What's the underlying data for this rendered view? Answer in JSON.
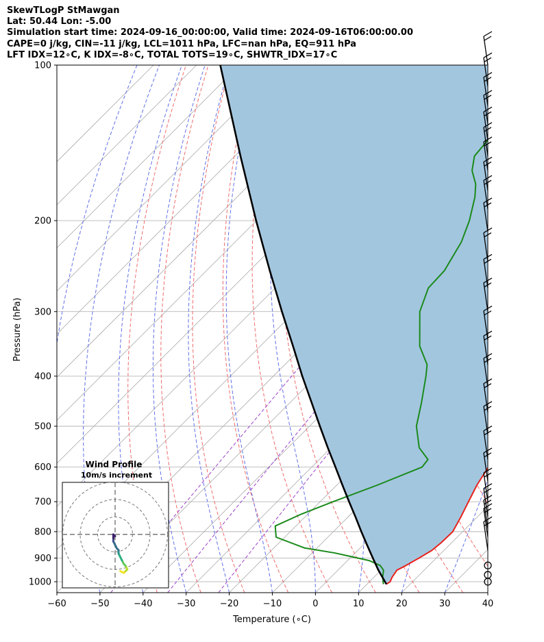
{
  "header": {
    "line1": "SkewTLogP StMawgan",
    "line2": "Lat: 50.44   Lon: -5.00",
    "line3": "Simulation start time: 2024-09-16_00:00:00, Valid time: 2024-09-16T06:00:00.00",
    "line4": "CAPE=0 j/kg, CIN=-11 j/kg, LCL=1011 hPa, LFC=nan hPa, EQ=911 hPa",
    "line5": "LFT IDX=12∘C, K IDX=-8∘C, TOTAL TOTS=19∘C, SHWTR_IDX=17∘C"
  },
  "chart_data": [
    {
      "type": "line",
      "subtype": "skew-t log-p",
      "xlabel": "Temperature (∘C)",
      "ylabel": "Pressure (hPa)",
      "xlim": [
        -60,
        40
      ],
      "ylim": [
        1050,
        100
      ],
      "y_scale": "log",
      "x_ticks": [
        -60,
        -50,
        -40,
        -30,
        -20,
        -10,
        0,
        10,
        20,
        30,
        40
      ],
      "y_ticks": [
        100,
        200,
        300,
        400,
        500,
        600,
        700,
        800,
        900,
        1000
      ],
      "grid": true,
      "colors": {
        "temperature": "#e8221b",
        "dewpoint": "#1a8a1a",
        "parcel": "#000000",
        "cape_fill": "#a3c6df",
        "dry_adiabats": "#f06a6a",
        "moist_adiabats": "#5f6fe8",
        "mixing_ratio": "#9a40c8",
        "isotherms": "#aaaaaa"
      },
      "series": [
        {
          "key": "temperature",
          "points": [
            [
              1011,
              14.5
            ],
            [
              1000,
              14.8
            ],
            [
              980,
              14.2
            ],
            [
              950,
              13.7
            ],
            [
              930,
              14.7
            ],
            [
              900,
              16.0
            ],
            [
              870,
              17.2
            ],
            [
              840,
              17.6
            ],
            [
              800,
              17.7
            ],
            [
              750,
              16.2
            ],
            [
              700,
              14.4
            ],
            [
              650,
              12.5
            ],
            [
              600,
              11.0
            ],
            [
              550,
              9.1
            ],
            [
              500,
              5.9
            ],
            [
              450,
              2.2
            ],
            [
              400,
              -2.2
            ],
            [
              350,
              -7.5
            ],
            [
              300,
              -13.8
            ],
            [
              270,
              -18.0
            ],
            [
              250,
              -21.7
            ],
            [
              230,
              -25.2
            ],
            [
              210,
              -29.2
            ],
            [
              200,
              -31.0
            ],
            [
              180,
              -36.2
            ],
            [
              170,
              -39.5
            ],
            [
              160,
              -43.4
            ],
            [
              150,
              -46.6
            ],
            [
              140,
              -50.6
            ],
            [
              130,
              -54.4
            ],
            [
              120,
              -58.8
            ],
            [
              110,
              -63.7
            ],
            [
              100,
              -68.2
            ]
          ]
        },
        {
          "key": "dewpoint",
          "points": [
            [
              1011,
              13.8
            ],
            [
              980,
              12.0
            ],
            [
              950,
              10.6
            ],
            [
              930,
              8.7
            ],
            [
              910,
              5.0
            ],
            [
              880,
              -4.6
            ],
            [
              860,
              -13.0
            ],
            [
              820,
              -22.0
            ],
            [
              780,
              -24.8
            ],
            [
              740,
              -21.5
            ],
            [
              700,
              -17.0
            ],
            [
              650,
              -10.6
            ],
            [
              600,
              -4.4
            ],
            [
              580,
              -4.8
            ],
            [
              550,
              -9.6
            ],
            [
              500,
              -15.2
            ],
            [
              450,
              -19.5
            ],
            [
              400,
              -24.6
            ],
            [
              380,
              -27.0
            ],
            [
              350,
              -33.0
            ],
            [
              300,
              -41.0
            ],
            [
              270,
              -44.5
            ],
            [
              250,
              -44.8
            ],
            [
              220,
              -47.5
            ],
            [
              200,
              -50.6
            ],
            [
              180,
              -54.8
            ],
            [
              170,
              -57.6
            ],
            [
              160,
              -61.6
            ],
            [
              150,
              -64.4
            ],
            [
              140,
              -65.0
            ],
            [
              130,
              -68.0
            ],
            [
              115,
              -73.0
            ],
            [
              100,
              -80.0
            ]
          ]
        },
        {
          "key": "parcel",
          "points": [
            [
              1011,
              14.5
            ],
            [
              1000,
              13.6
            ],
            [
              950,
              9.4
            ],
            [
              900,
              5.3
            ],
            [
              850,
              1.0
            ],
            [
              800,
              -3.5
            ],
            [
              750,
              -8.2
            ],
            [
              700,
              -13.3
            ],
            [
              650,
              -18.7
            ],
            [
              600,
              -24.5
            ],
            [
              550,
              -30.8
            ],
            [
              500,
              -37.6
            ],
            [
              450,
              -45.0
            ],
            [
              400,
              -53.3
            ],
            [
              350,
              -62.4
            ],
            [
              300,
              -73.0
            ],
            [
              250,
              -85.3
            ],
            [
              200,
              -100.1
            ],
            [
              150,
              -118.7
            ],
            [
              100,
              -144.5
            ]
          ]
        }
      ],
      "wind_barb_pressures": [
        100,
        110,
        120,
        130,
        140,
        150,
        160,
        175,
        190,
        210,
        240,
        270,
        300,
        340,
        380,
        420,
        470,
        520,
        580,
        640,
        700,
        750,
        790,
        820,
        870,
        930,
        970,
        1000
      ]
    },
    {
      "type": "line",
      "subtype": "hodograph",
      "title": "Wind Profile",
      "subtitle": "10m/s increment",
      "grid": true,
      "rings_ms": [
        10,
        20,
        30
      ],
      "trace_uv": [
        [
          3,
          -21
        ],
        [
          5,
          -22
        ],
        [
          6,
          -21
        ],
        [
          7,
          -20
        ],
        [
          6,
          -18
        ],
        [
          5,
          -17
        ],
        [
          4,
          -15
        ],
        [
          3,
          -13
        ],
        [
          2,
          -11
        ],
        [
          2,
          -9
        ],
        [
          1,
          -8
        ],
        [
          0,
          -6
        ],
        [
          -1,
          -4
        ],
        [
          -1,
          -2
        ],
        [
          -1,
          0
        ],
        [
          0,
          -1
        ]
      ]
    }
  ]
}
